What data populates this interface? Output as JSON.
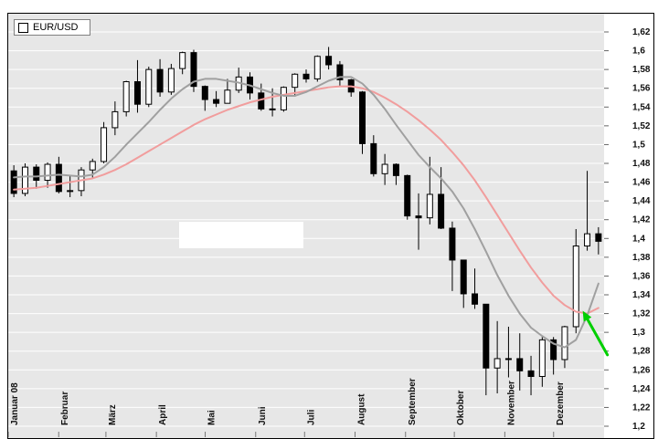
{
  "legend": {
    "label": "EUR/USD",
    "checkbox_icon": "empty-square"
  },
  "colors": {
    "plot_bg": "#e7e7e7",
    "grid": "#ffffff",
    "candle_up_fill": "#ffffff",
    "candle_down_fill": "#000000",
    "candle_border": "#000000",
    "ma_long_pink": "#f19d9d",
    "ma_short_gray": "#a0a0a0",
    "arrow_green": "#00cf00",
    "axis_text": "#111111"
  },
  "chart_data": {
    "type": "candlestick",
    "title": "EUR/USD",
    "instrument": "EUR/USD",
    "ylim": [
      1.2,
      1.62
    ],
    "grid": true,
    "y_tick_values": [
      1.62,
      1.6,
      1.58,
      1.56,
      1.54,
      1.52,
      1.5,
      1.48,
      1.46,
      1.44,
      1.42,
      1.4,
      1.38,
      1.36,
      1.34,
      1.32,
      1.3,
      1.28,
      1.26,
      1.24,
      1.22,
      1.2
    ],
    "y_tick_labels": [
      "1,62",
      "1,6",
      "1,58",
      "1,56",
      "1,54",
      "1,52",
      "1,5",
      "1,48",
      "1,46",
      "1,44",
      "1,42",
      "1,4",
      "1,38",
      "1,36",
      "1,34",
      "1,32",
      "1,3",
      "1,28",
      "1,26",
      "1,24",
      "1,22",
      "1,2"
    ],
    "x_month_labels": [
      "Januar 08",
      "Februar",
      "März",
      "April",
      "Mai",
      "Juni",
      "Juli",
      "August",
      "September",
      "Oktober",
      "November",
      "Dezember"
    ],
    "x_month_week_index": [
      0,
      4.49,
      8.69,
      13.18,
      17.52,
      22.01,
      26.36,
      30.85,
      35.34,
      39.68,
      44.17,
      48.51
    ],
    "candles_unit": "weekly OHLC, year 2008",
    "candles": [
      [
        1.472,
        1.478,
        1.444,
        1.448
      ],
      [
        1.448,
        1.48,
        1.445,
        1.476
      ],
      [
        1.476,
        1.479,
        1.453,
        1.462
      ],
      [
        1.462,
        1.481,
        1.454,
        1.479
      ],
      [
        1.479,
        1.487,
        1.448,
        1.45
      ],
      [
        1.45,
        1.467,
        1.444,
        1.451
      ],
      [
        1.451,
        1.476,
        1.445,
        1.473
      ],
      [
        1.473,
        1.485,
        1.465,
        1.482
      ],
      [
        1.482,
        1.524,
        1.48,
        1.518
      ],
      [
        1.518,
        1.546,
        1.51,
        1.535
      ],
      [
        1.535,
        1.568,
        1.53,
        1.567
      ],
      [
        1.567,
        1.59,
        1.534,
        1.543
      ],
      [
        1.543,
        1.583,
        1.54,
        1.58
      ],
      [
        1.58,
        1.591,
        1.551,
        1.556
      ],
      [
        1.556,
        1.586,
        1.553,
        1.581
      ],
      [
        1.581,
        1.599,
        1.575,
        1.598
      ],
      [
        1.598,
        1.601,
        1.556,
        1.562
      ],
      [
        1.562,
        1.563,
        1.536,
        1.548
      ],
      [
        1.548,
        1.557,
        1.54,
        1.544
      ],
      [
        1.544,
        1.57,
        1.544,
        1.558
      ],
      [
        1.558,
        1.582,
        1.555,
        1.572
      ],
      [
        1.572,
        1.577,
        1.548,
        1.555
      ],
      [
        1.555,
        1.565,
        1.536,
        1.538
      ],
      [
        1.538,
        1.56,
        1.53,
        1.537
      ],
      [
        1.537,
        1.562,
        1.535,
        1.561
      ],
      [
        1.561,
        1.576,
        1.551,
        1.575
      ],
      [
        1.575,
        1.58,
        1.566,
        1.57
      ],
      [
        1.57,
        1.595,
        1.567,
        1.594
      ],
      [
        1.594,
        1.604,
        1.58,
        1.585
      ],
      [
        1.585,
        1.589,
        1.562,
        1.569
      ],
      [
        1.569,
        1.57,
        1.551,
        1.556
      ],
      [
        1.556,
        1.557,
        1.49,
        1.501
      ],
      [
        1.501,
        1.51,
        1.466,
        1.469
      ],
      [
        1.469,
        1.49,
        1.457,
        1.479
      ],
      [
        1.479,
        1.48,
        1.457,
        1.467
      ],
      [
        1.467,
        1.468,
        1.42,
        1.424
      ],
      [
        1.424,
        1.448,
        1.388,
        1.422
      ],
      [
        1.422,
        1.487,
        1.415,
        1.447
      ],
      [
        1.447,
        1.476,
        1.41,
        1.411
      ],
      [
        1.411,
        1.418,
        1.344,
        1.377
      ],
      [
        1.377,
        1.377,
        1.326,
        1.341
      ],
      [
        1.341,
        1.368,
        1.325,
        1.33
      ],
      [
        1.33,
        1.33,
        1.233,
        1.262
      ],
      [
        1.262,
        1.312,
        1.235,
        1.272
      ],
      [
        1.272,
        1.306,
        1.252,
        1.272
      ],
      [
        1.272,
        1.299,
        1.238,
        1.259
      ],
      [
        1.259,
        1.275,
        1.233,
        1.253
      ],
      [
        1.253,
        1.296,
        1.242,
        1.292
      ],
      [
        1.292,
        1.295,
        1.255,
        1.271
      ],
      [
        1.271,
        1.307,
        1.262,
        1.306
      ],
      [
        1.306,
        1.41,
        1.299,
        1.392
      ],
      [
        1.392,
        1.472,
        1.387,
        1.405
      ],
      [
        1.405,
        1.412,
        1.383,
        1.397
      ]
    ],
    "series": [
      {
        "name": "pink-moving-average",
        "color": "#f19d9d",
        "values": [
          1.452,
          1.453,
          1.454,
          1.456,
          1.458,
          1.46,
          1.462,
          1.464,
          1.468,
          1.473,
          1.479,
          1.486,
          1.493,
          1.5,
          1.507,
          1.514,
          1.521,
          1.527,
          1.532,
          1.537,
          1.541,
          1.545,
          1.548,
          1.551,
          1.553,
          1.555,
          1.557,
          1.559,
          1.561,
          1.562,
          1.562,
          1.56,
          1.556,
          1.55,
          1.543,
          1.535,
          1.526,
          1.516,
          1.505,
          1.492,
          1.478,
          1.462,
          1.444,
          1.425,
          1.406,
          1.387,
          1.369,
          1.353,
          1.339,
          1.329,
          1.322,
          1.32,
          1.326
        ]
      },
      {
        "name": "gray-moving-average",
        "color": "#a0a0a0",
        "values": [
          1.465,
          1.466,
          1.466,
          1.467,
          1.468,
          1.467,
          1.466,
          1.468,
          1.476,
          1.487,
          1.5,
          1.512,
          1.524,
          1.537,
          1.549,
          1.559,
          1.567,
          1.57,
          1.57,
          1.568,
          1.566,
          1.563,
          1.559,
          1.555,
          1.552,
          1.552,
          1.556,
          1.562,
          1.568,
          1.572,
          1.572,
          1.565,
          1.553,
          1.538,
          1.521,
          1.505,
          1.489,
          1.476,
          1.464,
          1.45,
          1.432,
          1.41,
          1.386,
          1.361,
          1.339,
          1.32,
          1.305,
          1.296,
          1.288,
          1.284,
          1.292,
          1.318,
          1.352
        ]
      }
    ],
    "annotation": {
      "type": "arrow",
      "color": "#00cf00",
      "from_week": 53.3,
      "from_price": 1.276,
      "to_week": 51.1,
      "to_price": 1.323,
      "meaning": "green up-arrow pointing at the turning moving averages"
    }
  }
}
